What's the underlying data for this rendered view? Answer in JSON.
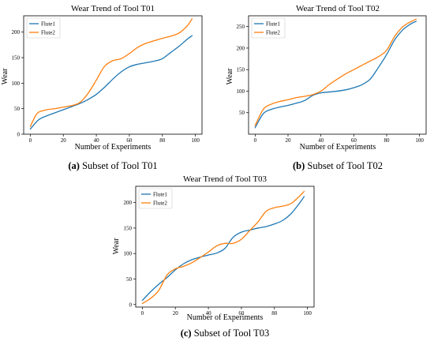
{
  "colors": {
    "flute1": "#1f77b4",
    "flute2": "#ff7f0e"
  },
  "chart_data": [
    {
      "type": "line",
      "title": "Wear Trend of Tool T01",
      "xlabel": "Number of Experiments",
      "ylabel": "Wear",
      "xlim": [
        -4,
        104
      ],
      "ylim": [
        0,
        232
      ],
      "xticks": [
        0,
        20,
        40,
        60,
        80,
        100
      ],
      "yticks": [
        0,
        50,
        100,
        150,
        200
      ],
      "legend": "top-left",
      "caption_label": "(a)",
      "caption_text": " Subset of Tool T01",
      "series": [
        {
          "name": "Flute1",
          "x": [
            0,
            5,
            10,
            15,
            20,
            25,
            30,
            35,
            40,
            45,
            50,
            55,
            60,
            65,
            70,
            75,
            80,
            85,
            90,
            95,
            98
          ],
          "values": [
            10,
            28,
            36,
            42,
            48,
            54,
            60,
            68,
            78,
            92,
            108,
            122,
            132,
            137,
            140,
            143,
            148,
            160,
            172,
            186,
            193
          ]
        },
        {
          "name": "Flute2",
          "x": [
            0,
            3,
            5,
            10,
            15,
            20,
            25,
            30,
            35,
            40,
            45,
            50,
            55,
            60,
            65,
            70,
            75,
            80,
            85,
            90,
            95,
            98
          ],
          "values": [
            15,
            35,
            43,
            48,
            50,
            53,
            56,
            62,
            80,
            106,
            133,
            144,
            148,
            158,
            170,
            178,
            183,
            188,
            192,
            198,
            212,
            226
          ]
        }
      ]
    },
    {
      "type": "line",
      "title": "Wear Trend of Tool T02",
      "xlabel": "Number of Experiments",
      "ylabel": "Wear",
      "xlim": [
        -4,
        104
      ],
      "ylim": [
        0,
        275
      ],
      "xticks": [
        0,
        20,
        40,
        60,
        80,
        100
      ],
      "yticks": [
        50,
        100,
        150,
        200,
        250
      ],
      "legend": "top-left",
      "caption_label": "(b)",
      "caption_text": " Subset of Tool T02",
      "series": [
        {
          "name": "Flute1",
          "x": [
            0,
            5,
            10,
            15,
            20,
            25,
            30,
            35,
            40,
            45,
            50,
            55,
            60,
            65,
            70,
            75,
            80,
            85,
            90,
            95,
            98
          ],
          "values": [
            15,
            48,
            58,
            63,
            67,
            72,
            78,
            90,
            96,
            98,
            100,
            103,
            108,
            115,
            128,
            155,
            185,
            220,
            243,
            257,
            262
          ]
        },
        {
          "name": "Flute2",
          "x": [
            0,
            5,
            10,
            15,
            20,
            25,
            30,
            35,
            40,
            45,
            50,
            55,
            60,
            65,
            70,
            75,
            80,
            85,
            90,
            95,
            98
          ],
          "values": [
            20,
            58,
            70,
            76,
            80,
            85,
            88,
            92,
            100,
            115,
            128,
            140,
            150,
            160,
            170,
            180,
            195,
            228,
            250,
            262,
            267
          ]
        }
      ]
    },
    {
      "type": "line",
      "title": "Wear Trend of Tool T03",
      "xlabel": "Number of Experiments",
      "ylabel": "Wear",
      "xlim": [
        -4,
        104
      ],
      "ylim": [
        -5,
        232
      ],
      "xticks": [
        0,
        20,
        40,
        60,
        80,
        100
      ],
      "yticks": [
        0,
        50,
        100,
        150,
        200
      ],
      "legend": "top-left",
      "caption_label": "(c)",
      "caption_text": " Subset of Tool T03",
      "series": [
        {
          "name": "Flute1",
          "x": [
            0,
            5,
            10,
            15,
            20,
            25,
            30,
            35,
            40,
            45,
            50,
            55,
            60,
            65,
            70,
            75,
            80,
            85,
            90,
            95,
            98
          ],
          "values": [
            8,
            25,
            40,
            53,
            68,
            80,
            88,
            93,
            97,
            101,
            110,
            132,
            142,
            146,
            150,
            153,
            158,
            165,
            178,
            198,
            212
          ]
        },
        {
          "name": "Flute2",
          "x": [
            0,
            5,
            10,
            15,
            20,
            25,
            30,
            35,
            40,
            45,
            50,
            55,
            60,
            65,
            70,
            75,
            80,
            85,
            90,
            95,
            98
          ],
          "values": [
            2,
            12,
            28,
            58,
            70,
            75,
            82,
            92,
            103,
            115,
            120,
            120,
            128,
            145,
            162,
            183,
            190,
            193,
            198,
            212,
            222
          ]
        }
      ]
    }
  ]
}
